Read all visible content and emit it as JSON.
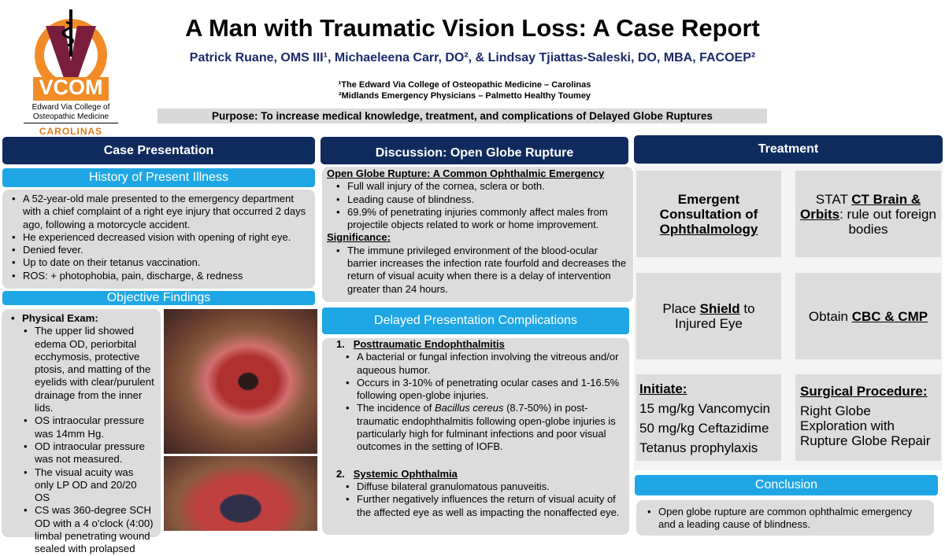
{
  "logo": {
    "letters": "VCOM",
    "line1": "Edward Via College of",
    "line2": "Osteopathic Medicine",
    "line3": "CAROLINAS"
  },
  "header": {
    "title": "A Man with Traumatic Vision Loss: A Case Report",
    "authors": "Patrick Ruane, OMS III¹, Michaeleena Carr, DO², & Lindsay Tjiattas-Saleski, DO, MBA, FACOEP²",
    "aff1": "¹The Edward Via College of Osteopathic Medicine – Carolinas",
    "aff2": "²Midlands Emergency Physicians – Palmetto Healthy Toumey",
    "purpose": "Purpose: To increase medical knowledge, treatment, and complications of Delayed Globe Ruptures"
  },
  "case": {
    "header": "Case Presentation",
    "hpi_title": "History of Present Illness",
    "hpi": [
      "A 52-year-old male presented to the emergency department with a chief complaint of a right eye injury that occurred 2 days ago, following a motorcycle accident.",
      "He experienced decreased vision with opening of right eye.",
      "Denied fever.",
      "Up to date on their tetanus vaccination.",
      "ROS: + photophobia, pain, discharge, & redness"
    ],
    "obj_title": "Objective Findings",
    "pe_label": "Physical Exam:",
    "pe": [
      "The upper lid showed edema OD, periorbital ecchymosis, protective ptosis, and matting of the eyelids with clear/purulent drainage from the inner lids.",
      "OS intraocular pressure was 14mm Hg.",
      "OD intraocular pressure was not measured.",
      "The visual acuity was only LP OD and 20/20 OS",
      "CS was 360-degree SCH OD with a 4 o'clock (4:00) limbal penetrating wound sealed with prolapsed"
    ]
  },
  "discussion": {
    "header": "Discussion: Open Globe Rupture",
    "h1": "Open Globe Rupture: A Common Ophthalmic Emergency",
    "items1": [
      "Full wall injury of the cornea, sclera or both.",
      "Leading cause of blindness.",
      "69.9% of penetrating injuries commonly affect males from projectile objects related to work or home improvement."
    ],
    "h2": "Significance:",
    "items2": [
      "The immune privileged environment of the blood-ocular barrier increases the infection rate fourfold and decreases the return of visual acuity when there is a delay of intervention greater than 24 hours."
    ],
    "comp_title": "Delayed Presentation Complications",
    "c1_num": "1.",
    "c1": "Posttraumatic Endophthalmitis",
    "c1_items": [
      "A bacterial or fungal infection involving the vitreous and/or aqueous humor.",
      "Occurs in 3-10% of penetrating ocular cases and 1-16.5% following open-globe injuries."
    ],
    "c1_last_a": "The incidence of ",
    "c1_last_i": "Bacillus cereus",
    "c1_last_b": " (8.7-50%) in post-traumatic endophthalmitis following open-globe injuries is particularly high for fulminant infections and poor visual outcomes in the setting of IOFB.",
    "c2_num": "2.",
    "c2": "Systemic Ophthalmia",
    "c2_items": [
      "Diffuse bilateral granulomatous panuveitis.",
      "Further negatively influences the return of visual acuity of the affected eye as well as impacting the nonaffected eye."
    ]
  },
  "treatment": {
    "header": "Treatment",
    "t1": "Emergent Consultation of",
    "t1u": "Ophthalmology",
    "t2a": "STAT ",
    "t2u": "CT Brain & Orbits",
    "t2b": ": rule out foreign bodies",
    "t3a": "Place ",
    "t3u": "Shield",
    "t3b": " to Injured Eye",
    "t4a": "Obtain ",
    "t4u": "CBC & CMP",
    "t5h": "Initiate:",
    "t5": [
      "15 mg/kg Vancomycin",
      "50 mg/kg Ceftazidime",
      "Tetanus prophylaxis"
    ],
    "t6h": "Surgical Procedure:",
    "t6": "Right Globe Exploration with Rupture Globe Repair"
  },
  "conclusion": {
    "title": "Conclusion",
    "items": [
      "Open globe rupture are common ophthalmic emergency and a leading cause of blindness."
    ]
  }
}
